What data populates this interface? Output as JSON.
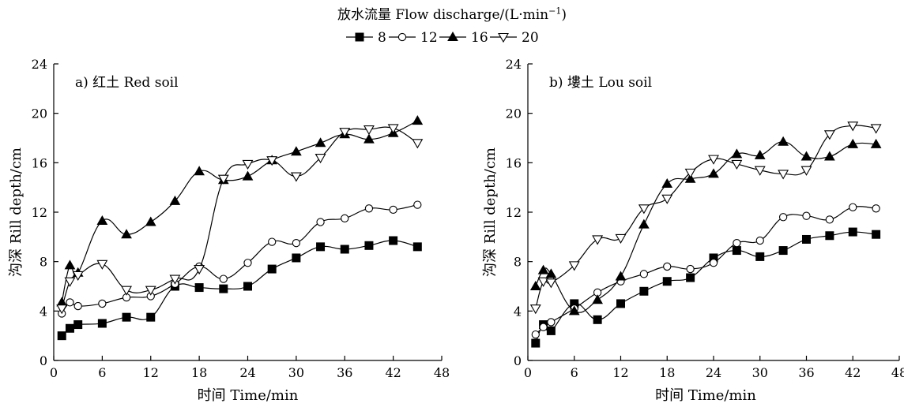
{
  "legend": {
    "title": "放水流量 Flow discharge/(L·min",
    "title_sup": "−1",
    "title_close": ")"
  },
  "chart_data": [
    {
      "type": "line",
      "title": "a) 红土 Red soil",
      "xlabel": "时间 Time/min",
      "ylabel": "沟深 Rill depth/cm",
      "xlim": [
        0,
        48
      ],
      "ylim": [
        0,
        24
      ],
      "xticks": [
        0,
        6,
        12,
        18,
        24,
        30,
        36,
        42,
        48
      ],
      "yticks": [
        0,
        4,
        8,
        12,
        16,
        20,
        24
      ],
      "series": [
        {
          "name": "8",
          "marker": "square-filled",
          "x": [
            1,
            2,
            3,
            6,
            9,
            12,
            15,
            18,
            21,
            24,
            27,
            30,
            33,
            36,
            39,
            42,
            45
          ],
          "y": [
            2.0,
            2.6,
            2.9,
            3.0,
            3.5,
            3.5,
            6.0,
            5.9,
            5.8,
            6.0,
            7.4,
            8.3,
            9.2,
            9.0,
            9.3,
            9.7,
            9.2
          ]
        },
        {
          "name": "12",
          "marker": "circle-open",
          "x": [
            1,
            2,
            3,
            6,
            9,
            12,
            15,
            18,
            21,
            24,
            27,
            30,
            33,
            36,
            39,
            42,
            45
          ],
          "y": [
            3.8,
            4.7,
            4.4,
            4.6,
            5.1,
            5.2,
            6.2,
            7.6,
            6.6,
            7.9,
            9.6,
            9.5,
            11.2,
            11.5,
            12.3,
            12.2,
            12.6
          ]
        },
        {
          "name": "16",
          "marker": "triangle-filled",
          "x": [
            1,
            2,
            3,
            6,
            9,
            12,
            15,
            18,
            21,
            24,
            27,
            30,
            33,
            36,
            39,
            42,
            45
          ],
          "y": [
            4.7,
            7.7,
            7.1,
            11.3,
            10.2,
            11.2,
            12.9,
            15.3,
            14.6,
            14.9,
            16.2,
            16.9,
            17.6,
            18.3,
            17.9,
            18.4,
            19.4
          ]
        },
        {
          "name": "20",
          "marker": "triangle-down-open",
          "x": [
            1,
            2,
            3,
            6,
            9,
            12,
            15,
            18,
            21,
            24,
            27,
            30,
            33,
            36,
            39,
            42,
            45
          ],
          "y": [
            4.2,
            6.4,
            6.9,
            7.8,
            5.7,
            5.7,
            6.6,
            7.4,
            14.7,
            15.9,
            16.2,
            14.9,
            16.4,
            18.5,
            18.7,
            18.8,
            17.6
          ]
        }
      ]
    },
    {
      "type": "line",
      "title": "b) 塿土 Lou soil",
      "xlabel": "时间 Time/min",
      "ylabel": "沟深 Rill depth/cm",
      "xlim": [
        0,
        48
      ],
      "ylim": [
        0,
        24
      ],
      "xticks": [
        0,
        6,
        12,
        18,
        24,
        30,
        36,
        42,
        48
      ],
      "yticks": [
        0,
        4,
        8,
        12,
        16,
        20,
        24
      ],
      "series": [
        {
          "name": "8",
          "marker": "square-filled",
          "x": [
            1,
            2,
            3,
            6,
            9,
            12,
            15,
            18,
            21,
            24,
            27,
            30,
            33,
            36,
            39,
            42,
            45
          ],
          "y": [
            1.4,
            2.9,
            2.4,
            4.6,
            3.3,
            4.6,
            5.6,
            6.4,
            6.7,
            8.3,
            8.9,
            8.4,
            8.9,
            9.8,
            10.1,
            10.4,
            10.2
          ]
        },
        {
          "name": "12",
          "marker": "circle-open",
          "x": [
            1,
            2,
            3,
            6,
            9,
            12,
            15,
            18,
            21,
            24,
            27,
            30,
            33,
            36,
            39,
            42,
            45
          ],
          "y": [
            2.1,
            2.7,
            3.1,
            4.2,
            5.5,
            6.4,
            7.0,
            7.6,
            7.4,
            7.9,
            9.5,
            9.7,
            11.6,
            11.7,
            11.4,
            12.4,
            12.3
          ]
        },
        {
          "name": "16",
          "marker": "triangle-filled",
          "x": [
            1,
            2,
            3,
            6,
            9,
            12,
            15,
            18,
            21,
            24,
            27,
            30,
            33,
            36,
            39,
            42,
            45
          ],
          "y": [
            6.0,
            7.3,
            7.0,
            4.0,
            4.9,
            6.8,
            11.0,
            14.3,
            14.7,
            15.1,
            16.7,
            16.6,
            17.7,
            16.5,
            16.5,
            17.5,
            17.5
          ]
        },
        {
          "name": "20",
          "marker": "triangle-down-open",
          "x": [
            1,
            2,
            3,
            6,
            9,
            12,
            15,
            18,
            21,
            24,
            27,
            30,
            33,
            36,
            39,
            42,
            45
          ],
          "y": [
            4.2,
            6.4,
            6.3,
            7.7,
            9.8,
            9.9,
            12.3,
            13.1,
            15.2,
            16.3,
            15.9,
            15.4,
            15.1,
            15.4,
            18.3,
            19.0,
            18.8
          ]
        }
      ]
    }
  ]
}
